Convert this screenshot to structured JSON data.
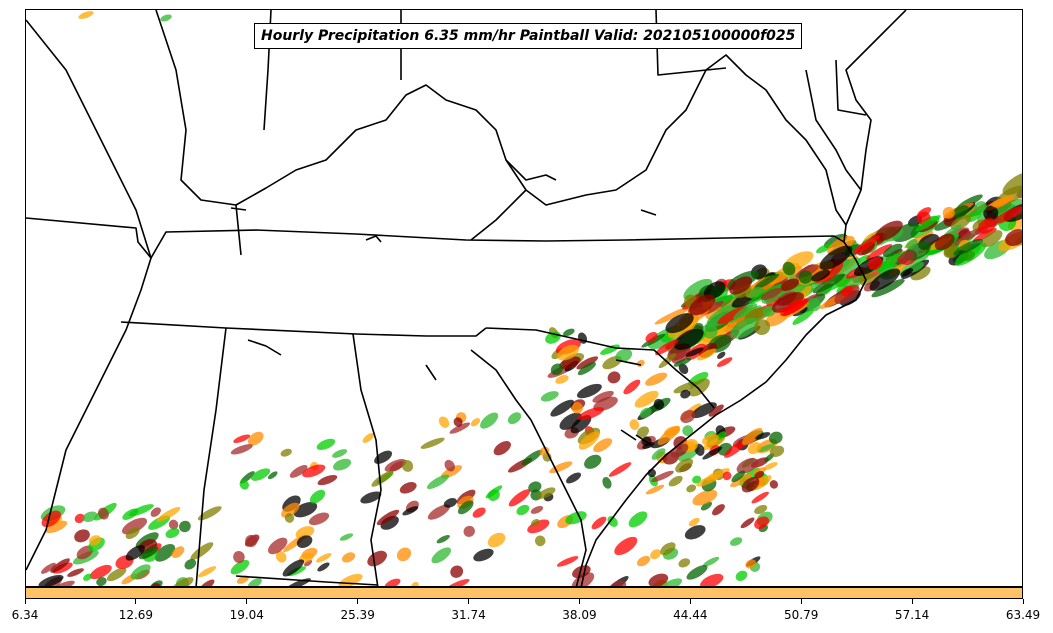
{
  "title": "Hourly Precipitation 6.35 mm/hr Paintball Valid: 202105100000f025",
  "colorbar": {
    "fill_color": "#ffc266",
    "tick_labels": [
      "6.34",
      "12.69",
      "19.04",
      "25.39",
      "31.74",
      "38.09",
      "44.44",
      "50.79",
      "57.14",
      "63.49"
    ]
  },
  "member_colors": [
    "#2db82d",
    "#7f7f00",
    "#ff8c00",
    "#ff0000",
    "#8b0000",
    "#ffa500",
    "#006400",
    "#000000",
    "#a52a2a",
    "#00cc00"
  ]
}
